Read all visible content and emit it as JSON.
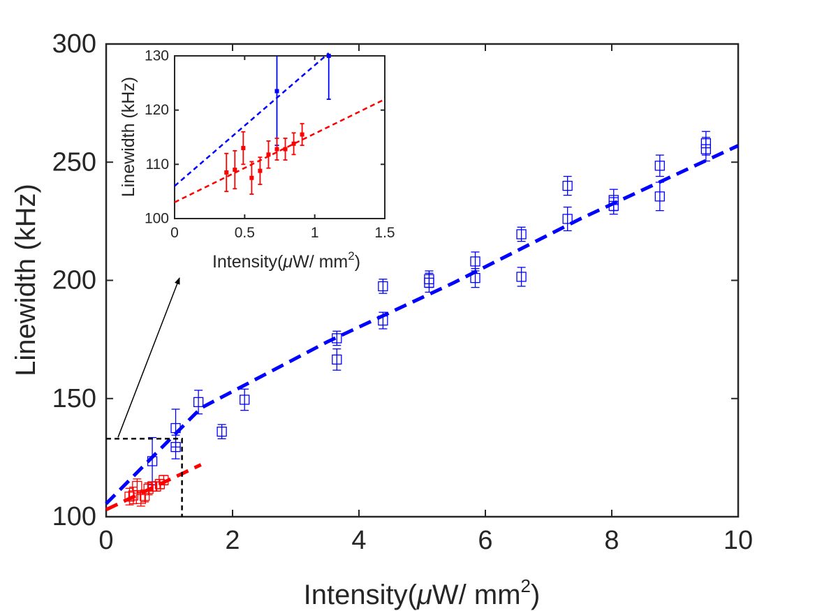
{
  "colors": {
    "blue": "#0000ff",
    "red": "#ff0000",
    "axis": "#262626",
    "box": "#000000"
  },
  "chart_data": [
    {
      "type": "scatter",
      "xlabel": "Intensity(μW/ mm²)",
      "xlabel_parts": {
        "prefix": "Intensity(",
        "mu": "μ",
        "mid": "W/ mm",
        "sup": "2",
        "suffix": ")"
      },
      "ylabel": "Linewidth (kHz)",
      "xlim": [
        0,
        10
      ],
      "ylim": [
        100,
        300
      ],
      "xticks": [
        0,
        2,
        4,
        6,
        8,
        10
      ],
      "yticks": [
        100,
        150,
        200,
        250,
        300
      ],
      "grid": false,
      "legend": "none",
      "series": [
        {
          "color": "#0000ff",
          "marker": "open-square",
          "points": [
            {
              "x": 0.73,
              "y": 123.5,
              "err": 10
            },
            {
              "x": 1.1,
              "y": 129.5,
              "err": 5
            },
            {
              "x": 1.1,
              "y": 137.5,
              "err": 8
            },
            {
              "x": 1.46,
              "y": 148.5,
              "err": 5
            },
            {
              "x": 1.83,
              "y": 136,
              "err": 3
            },
            {
              "x": 2.19,
              "y": 149.5,
              "err": 4.5
            },
            {
              "x": 3.65,
              "y": 166.5,
              "err": 4.5
            },
            {
              "x": 3.65,
              "y": 175.5,
              "err": 3
            },
            {
              "x": 4.38,
              "y": 183,
              "err": 3.5
            },
            {
              "x": 4.38,
              "y": 197.5,
              "err": 3
            },
            {
              "x": 5.11,
              "y": 199,
              "err": 4
            },
            {
              "x": 5.11,
              "y": 200.5,
              "err": 3.5
            },
            {
              "x": 5.84,
              "y": 201,
              "err": 4
            },
            {
              "x": 5.84,
              "y": 208,
              "err": 4
            },
            {
              "x": 6.57,
              "y": 201.5,
              "err": 4
            },
            {
              "x": 6.57,
              "y": 219.5,
              "err": 3
            },
            {
              "x": 7.3,
              "y": 226,
              "err": 5
            },
            {
              "x": 7.3,
              "y": 240,
              "err": 4
            },
            {
              "x": 8.03,
              "y": 231.5,
              "err": 3.5
            },
            {
              "x": 8.03,
              "y": 234,
              "err": 4.5
            },
            {
              "x": 8.76,
              "y": 235.5,
              "err": 6
            },
            {
              "x": 8.76,
              "y": 248.5,
              "err": 4.5
            },
            {
              "x": 9.49,
              "y": 255.5,
              "err": 5
            },
            {
              "x": 9.49,
              "y": 258,
              "err": 5
            }
          ],
          "fit": {
            "style": "dashed",
            "x": [
              0,
              1.5,
              3.5,
              5.5,
              7.5,
              10
            ],
            "y": [
              105.5,
              146,
              174,
              199,
              226,
              257
            ]
          }
        },
        {
          "color": "#ff0000",
          "marker": "open-square",
          "points": [
            {
              "x": 0.37,
              "y": 108.5,
              "err": 3.5
            },
            {
              "x": 0.43,
              "y": 109.0,
              "err": 3.5
            },
            {
              "x": 0.49,
              "y": 113.0,
              "err": 3.0
            },
            {
              "x": 0.55,
              "y": 107.5,
              "err": 3.0
            },
            {
              "x": 0.61,
              "y": 108.8,
              "err": 2.5
            },
            {
              "x": 0.67,
              "y": 111.8,
              "err": 2.5
            },
            {
              "x": 0.73,
              "y": 112.8,
              "err": 2.0
            },
            {
              "x": 0.79,
              "y": 112.8,
              "err": 2.0
            },
            {
              "x": 0.85,
              "y": 113.8,
              "err": 2.0
            },
            {
              "x": 0.91,
              "y": 115.5,
              "err": 2.0
            }
          ],
          "fit": {
            "style": "dashed",
            "x": [
              0,
              1.5
            ],
            "y": [
              103.0,
              122.0
            ]
          }
        }
      ]
    },
    {
      "type": "scatter",
      "xlabel": "Intensity(μW/ mm²)",
      "xlabel_parts": {
        "prefix": "Intensity(",
        "mu": "μ",
        "mid": "W/ mm",
        "sup": "2",
        "suffix": ")"
      },
      "ylabel": "Linewidth (kHz)",
      "xlim": [
        0,
        1.5
      ],
      "ylim": [
        100,
        130
      ],
      "xticks": [
        0,
        0.5,
        1,
        1.5
      ],
      "yticks": [
        100,
        110,
        120,
        130
      ],
      "grid": false,
      "legend": "none",
      "series": [
        {
          "color": "#0000ff",
          "marker": "filled-square",
          "points": [
            {
              "x": 0.73,
              "y": 123.5,
              "err": 10
            },
            {
              "x": 1.1,
              "y": 130.0,
              "err": 8
            }
          ],
          "fit": {
            "style": "dashed",
            "x": [
              0,
              1.1
            ],
            "y": [
              106.0,
              130.5
            ]
          }
        },
        {
          "color": "#ff0000",
          "marker": "filled-square",
          "points": [
            {
              "x": 0.37,
              "y": 108.5,
              "err": 3.5
            },
            {
              "x": 0.43,
              "y": 109.0,
              "err": 3.5
            },
            {
              "x": 0.49,
              "y": 113.0,
              "err": 3.0
            },
            {
              "x": 0.55,
              "y": 107.5,
              "err": 3.0
            },
            {
              "x": 0.61,
              "y": 108.8,
              "err": 2.5
            },
            {
              "x": 0.67,
              "y": 111.8,
              "err": 2.5
            },
            {
              "x": 0.73,
              "y": 112.8,
              "err": 2.0
            },
            {
              "x": 0.79,
              "y": 112.8,
              "err": 2.0
            },
            {
              "x": 0.85,
              "y": 113.8,
              "err": 2.0
            },
            {
              "x": 0.91,
              "y": 115.5,
              "err": 2.0
            }
          ],
          "fit": {
            "style": "dashed",
            "x": [
              0,
              1.5
            ],
            "y": [
              103.0,
              122.0
            ]
          }
        }
      ]
    }
  ],
  "zoom_box": {
    "x": [
      0,
      1.2
    ],
    "y": [
      100,
      133
    ]
  }
}
